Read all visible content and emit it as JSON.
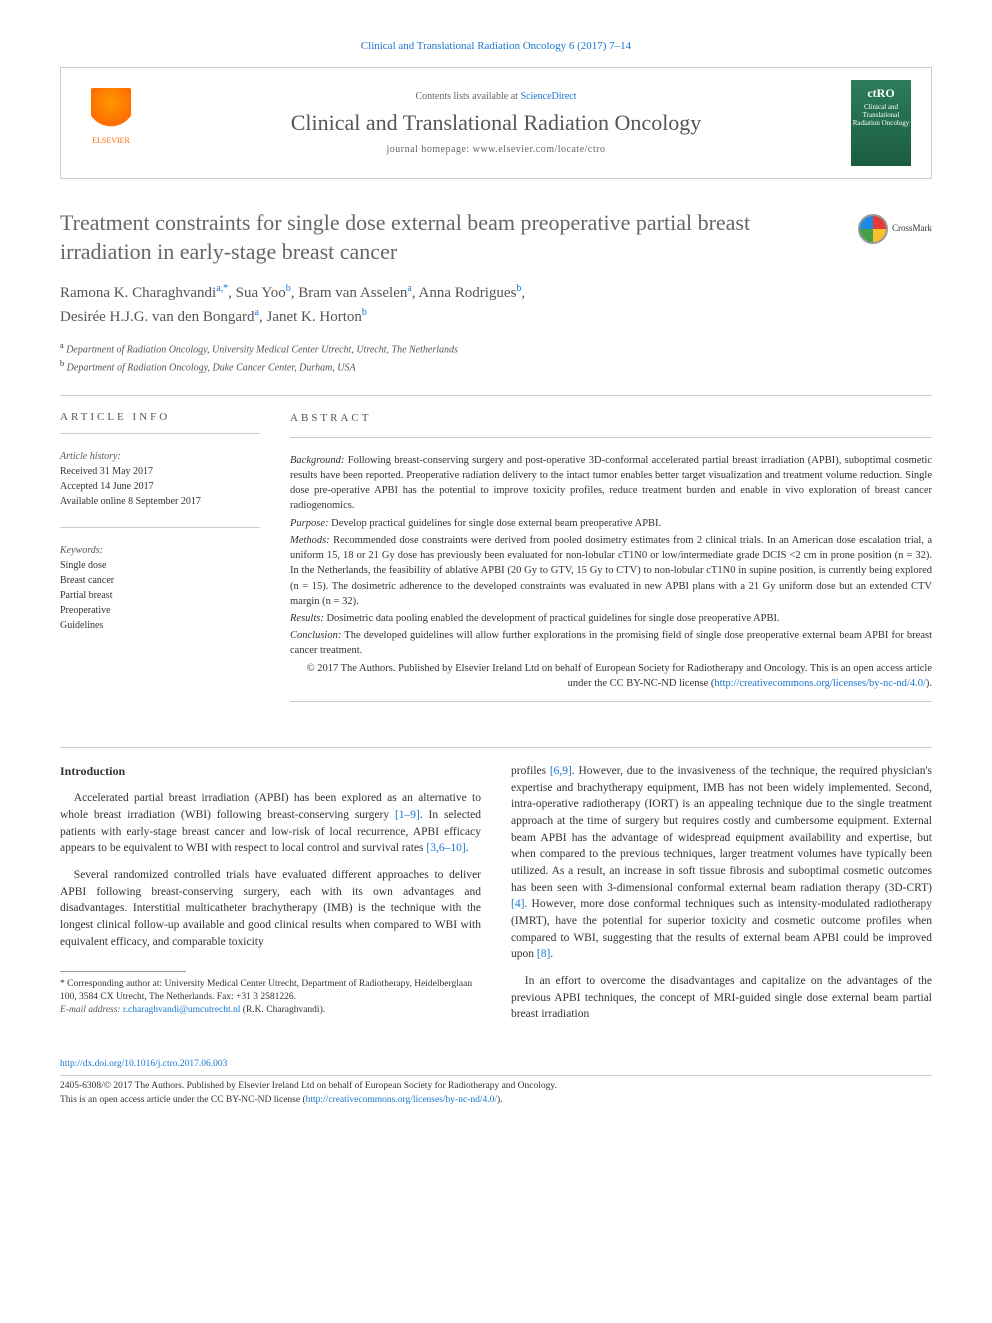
{
  "header": {
    "citation": "Clinical and Translational Radiation Oncology 6 (2017) 7–14",
    "contents_prefix": "Contents lists available at ",
    "contents_link": "ScienceDirect",
    "journal_title": "Clinical and Translational Radiation Oncology",
    "homepage_prefix": "journal homepage: ",
    "homepage": "www.elsevier.com/locate/ctro",
    "elsevier": "ELSEVIER",
    "ctro_brand": "ctRO",
    "ctro_sub": "Clinical and Translational Radiation Oncology"
  },
  "title": "Treatment constraints for single dose external beam preoperative partial breast irradiation in early-stage breast cancer",
  "crossmark": "CrossMark",
  "authors": {
    "a1_name": "Ramona K. Charaghvandi",
    "a1_sup": "a,*",
    "a2_name": "Sua Yoo",
    "a2_sup": "b",
    "a3_name": "Bram van Asselen",
    "a3_sup": "a",
    "a4_name": "Anna Rodrigues",
    "a4_sup": "b",
    "a5_name": "Desirée H.J.G. van den Bongard",
    "a5_sup": "a",
    "a6_name": "Janet K. Horton",
    "a6_sup": "b"
  },
  "affiliations": {
    "a": "Department of Radiation Oncology, University Medical Center Utrecht, Utrecht, The Netherlands",
    "b": "Department of Radiation Oncology, Duke Cancer Center, Durham, USA"
  },
  "article_info": {
    "heading": "ARTICLE INFO",
    "history_label": "Article history:",
    "received": "Received 31 May 2017",
    "accepted": "Accepted 14 June 2017",
    "online": "Available online 8 September 2017",
    "keywords_label": "Keywords:",
    "kw1": "Single dose",
    "kw2": "Breast cancer",
    "kw3": "Partial breast",
    "kw4": "Preoperative",
    "kw5": "Guidelines"
  },
  "abstract": {
    "heading": "ABSTRACT",
    "background_label": "Background:",
    "background": "Following breast-conserving surgery and post-operative 3D-conformal accelerated partial breast irradiation (APBI), suboptimal cosmetic results have been reported. Preoperative radiation delivery to the intact tumor enables better target visualization and treatment volume reduction. Single dose pre-operative APBI has the potential to improve toxicity profiles, reduce treatment burden and enable in vivo exploration of breast cancer radiogenomics.",
    "purpose_label": "Purpose:",
    "purpose": "Develop practical guidelines for single dose external beam preoperative APBI.",
    "methods_label": "Methods:",
    "methods": "Recommended dose constraints were derived from pooled dosimetry estimates from 2 clinical trials. In an American dose escalation trial, a uniform 15, 18 or 21 Gy dose has previously been evaluated for non-lobular cT1N0 or low/intermediate grade DCIS <2 cm in prone position (n = 32). In the Netherlands, the feasibility of ablative APBI (20 Gy to GTV, 15 Gy to CTV) to non-lobular cT1N0 in supine position, is currently being explored (n = 15). The dosimetric adherence to the developed constraints was evaluated in new APBI plans with a 21 Gy uniform dose but an extended CTV margin (n = 32).",
    "results_label": "Results:",
    "results": "Dosimetric data pooling enabled the development of practical guidelines for single dose preoperative APBI.",
    "conclusion_label": "Conclusion:",
    "conclusion": "The developed guidelines will allow further explorations in the promising field of single dose preoperative external beam APBI for breast cancer treatment.",
    "copyright": "© 2017 The Authors. Published by Elsevier Ireland Ltd on behalf of European Society for Radiotherapy and Oncology. This is an open access article under the CC BY-NC-ND license (",
    "license_url": "http://creativecommons.org/licenses/by-nc-nd/4.0/",
    "copyright_close": ")."
  },
  "body": {
    "intro_heading": "Introduction",
    "p1": "Accelerated partial breast irradiation (APBI) has been explored as an alternative to whole breast irradiation (WBI) following breast-conserving surgery [1–9]. In selected patients with early-stage breast cancer and low-risk of local recurrence, APBI efficacy appears to be equivalent to WBI with respect to local control and survival rates [3,6–10].",
    "p2": "Several randomized controlled trials have evaluated different approaches to deliver APBI following breast-conserving surgery, each with its own advantages and disadvantages. Interstitial multicatheter brachytherapy (IMB) is the technique with the longest clinical follow-up available and good clinical results when compared to WBI with equivalent efficacy, and comparable toxicity",
    "p3": "profiles [6,9]. However, due to the invasiveness of the technique, the required physician's expertise and brachytherapy equipment, IMB has not been widely implemented. Second, intra-operative radiotherapy (IORT) is an appealing technique due to the single treatment approach at the time of surgery but requires costly and cumbersome equipment. External beam APBI has the advantage of widespread equipment availability and expertise, but when compared to the previous techniques, larger treatment volumes have typically been utilized. As a result, an increase in soft tissue fibrosis and suboptimal cosmetic outcomes has been seen with 3-dimensional conformal external beam radiation therapy (3D-CRT) [4]. However, more dose conformal techniques such as intensity-modulated radiotherapy (IMRT), have the potential for superior toxicity and cosmetic outcome profiles when compared to WBI, suggesting that the results of external beam APBI could be improved upon [8].",
    "p4": "In an effort to overcome the disadvantages and capitalize on the advantages of the previous APBI techniques, the concept of MRI-guided single dose external beam partial breast irradiation"
  },
  "footnotes": {
    "corr": "* Corresponding author at: University Medical Center Utrecht, Department of Radiotherapy, Heidelberglaan 100, 3584 CX Utrecht, The Netherlands. Fax: +31 3 2581226.",
    "email_label": "E-mail address:",
    "email": "r.charaghvandi@umcutrecht.nl",
    "email_author": "(R.K. Charaghvandi)."
  },
  "footer": {
    "doi": "http://dx.doi.org/10.1016/j.ctro.2017.06.003",
    "issn_line": "2405-6308/© 2017 The Authors. Published by Elsevier Ireland Ltd on behalf of European Society for Radiotherapy and Oncology.",
    "license_line": "This is an open access article under the CC BY-NC-ND license (",
    "license_url": "http://creativecommons.org/licenses/by-nc-nd/4.0/",
    "license_close": ")."
  },
  "refs": {
    "r1": "[1–9]",
    "r2": "[3,6–10]",
    "r3": "[6,9]",
    "r4": "[4]",
    "r5": "[8]"
  }
}
